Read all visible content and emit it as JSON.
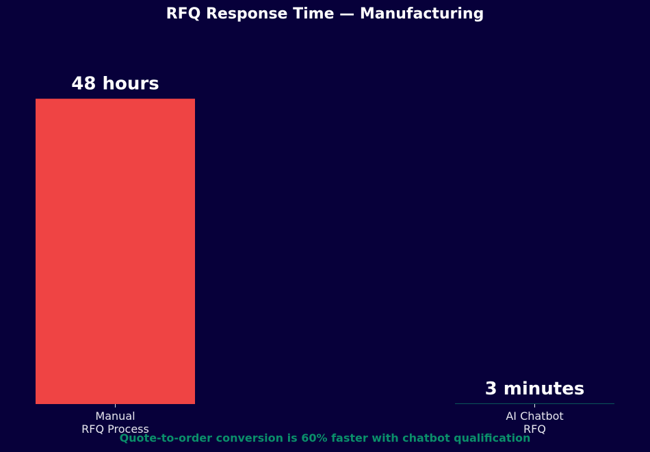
{
  "chart_data": {
    "type": "bar",
    "title": "RFQ Response Time — Manufacturing",
    "categories": [
      "Manual\nRFQ Process",
      "AI Chatbot\nRFQ"
    ],
    "values": [
      48,
      0.05
    ],
    "value_labels": [
      "48 hours",
      "3 minutes"
    ],
    "colors": [
      "#ef4444",
      "#10b981"
    ],
    "ylim": [
      0,
      57.6
    ],
    "annotation": "Quote-to-order conversion is 60% faster with chatbot qualification"
  }
}
